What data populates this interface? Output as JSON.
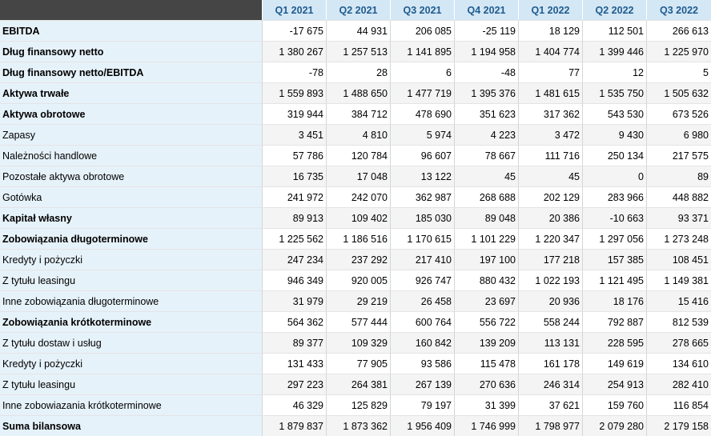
{
  "columns": [
    "Q1 2021",
    "Q2 2021",
    "Q3 2021",
    "Q4 2021",
    "Q1 2022",
    "Q2 2022",
    "Q3 2022"
  ],
  "rows": [
    {
      "label": "EBITDA",
      "bold": true,
      "values": [
        "-17 675",
        "44 931",
        "206 085",
        "-25 119",
        "18 129",
        "112 501",
        "266 613"
      ]
    },
    {
      "label": "Dług finansowy netto",
      "bold": true,
      "values": [
        "1 380 267",
        "1 257 513",
        "1 141 895",
        "1 194 958",
        "1 404 774",
        "1 399 446",
        "1 225 970"
      ]
    },
    {
      "label": "Dług finansowy netto/EBITDA",
      "bold": true,
      "values": [
        "-78",
        "28",
        "6",
        "-48",
        "77",
        "12",
        "5"
      ]
    },
    {
      "label": "Aktywa trwałe",
      "bold": true,
      "values": [
        "1 559 893",
        "1 488 650",
        "1 477 719",
        "1 395 376",
        "1 481 615",
        "1 535 750",
        "1 505 632"
      ]
    },
    {
      "label": "Aktywa obrotowe",
      "bold": true,
      "values": [
        "319 944",
        "384 712",
        "478 690",
        "351 623",
        "317 362",
        "543 530",
        "673 526"
      ]
    },
    {
      "label": "Zapasy",
      "bold": false,
      "values": [
        "3 451",
        "4 810",
        "5 974",
        "4 223",
        "3 472",
        "9 430",
        "6 980"
      ]
    },
    {
      "label": "Należności handlowe",
      "bold": false,
      "values": [
        "57 786",
        "120 784",
        "96 607",
        "78 667",
        "111 716",
        "250 134",
        "217 575"
      ]
    },
    {
      "label": "Pozostałe aktywa obrotowe",
      "bold": false,
      "values": [
        "16 735",
        "17 048",
        "13 122",
        "45",
        "45",
        "0",
        "89"
      ]
    },
    {
      "label": "Gotówka",
      "bold": false,
      "values": [
        "241 972",
        "242 070",
        "362 987",
        "268 688",
        "202 129",
        "283 966",
        "448 882"
      ]
    },
    {
      "label": "Kapitał własny",
      "bold": true,
      "values": [
        "89 913",
        "109 402",
        "185 030",
        "89 048",
        "20 386",
        "-10 663",
        "93 371"
      ]
    },
    {
      "label": "Zobowiązania długoterminowe",
      "bold": true,
      "values": [
        "1 225 562",
        "1 186 516",
        "1 170 615",
        "1 101 229",
        "1 220 347",
        "1 297 056",
        "1 273 248"
      ]
    },
    {
      "label": "Kredyty i pożyczki",
      "bold": false,
      "values": [
        "247 234",
        "237 292",
        "217 410",
        "197 100",
        "177 218",
        "157 385",
        "108 451"
      ]
    },
    {
      "label": "Z tytułu leasingu",
      "bold": false,
      "values": [
        "946 349",
        "920 005",
        "926 747",
        "880 432",
        "1 022 193",
        "1 121 495",
        "1 149 381"
      ]
    },
    {
      "label": "Inne zobowiązania długoterminowe",
      "bold": false,
      "values": [
        "31 979",
        "29 219",
        "26 458",
        "23 697",
        "20 936",
        "18 176",
        "15 416"
      ]
    },
    {
      "label": "Zobowiązania krótkoterminowe",
      "bold": true,
      "values": [
        "564 362",
        "577 444",
        "600 764",
        "556 722",
        "558 244",
        "792 887",
        "812 539"
      ]
    },
    {
      "label": "Z tytułu dostaw i usług",
      "bold": false,
      "values": [
        "89 377",
        "109 329",
        "160 842",
        "139 209",
        "113 131",
        "228 595",
        "278 665"
      ]
    },
    {
      "label": "Kredyty i pożyczki",
      "bold": false,
      "values": [
        "131 433",
        "77 905",
        "93 586",
        "115 478",
        "161 178",
        "149 619",
        "134 610"
      ]
    },
    {
      "label": "Z tytułu leasingu",
      "bold": false,
      "values": [
        "297 223",
        "264 381",
        "267 139",
        "270 636",
        "246 314",
        "254 913",
        "282 410"
      ]
    },
    {
      "label": "Inne zobowiazania krótkoterminowe",
      "bold": false,
      "values": [
        "46 329",
        "125 829",
        "79 197",
        "31 399",
        "37 621",
        "159 760",
        "116 854"
      ]
    },
    {
      "label": "Suma bilansowa",
      "bold": true,
      "values": [
        "1 879 837",
        "1 873 362",
        "1 956 409",
        "1 746 999",
        "1 798 977",
        "2 079 280",
        "2 179 158"
      ]
    }
  ]
}
